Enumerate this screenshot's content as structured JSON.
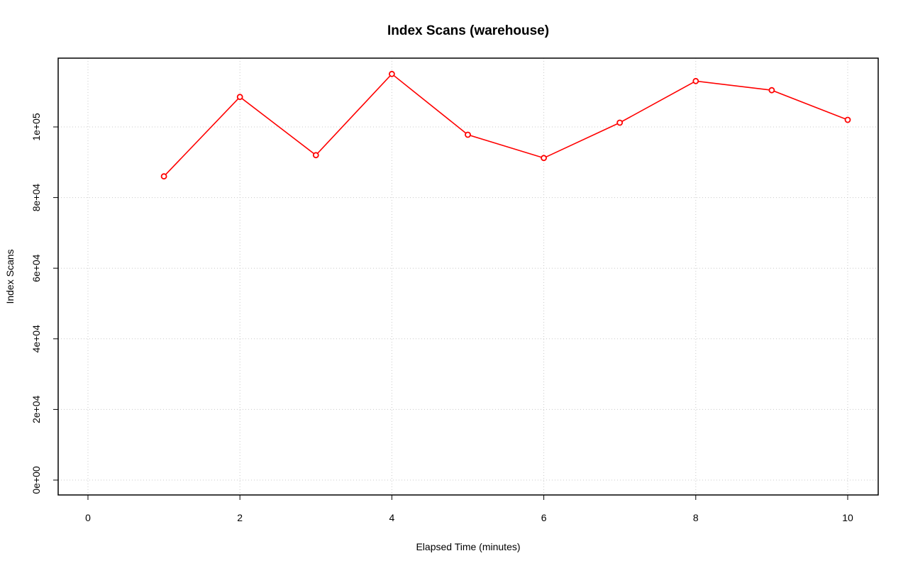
{
  "chart_data": {
    "type": "line",
    "title": "Index Scans (warehouse)",
    "xlabel": "Elapsed Time (minutes)",
    "ylabel": "Index Scans",
    "xlim": [
      0,
      10
    ],
    "ylim": [
      0,
      120000
    ],
    "x_ticks": [
      0,
      2,
      4,
      6,
      8,
      10
    ],
    "x_tick_labels": [
      "0",
      "2",
      "4",
      "6",
      "8",
      "10"
    ],
    "y_ticks": [
      0,
      20000,
      40000,
      60000,
      80000,
      100000
    ],
    "y_tick_labels": [
      "0e+00",
      "2e+04",
      "4e+04",
      "6e+04",
      "8e+04",
      "1e+05"
    ],
    "grid": true,
    "series": [
      {
        "color": "#ff0000",
        "marker": "open-circle",
        "x": [
          1,
          2,
          3,
          4,
          5,
          6,
          7,
          8,
          9,
          10
        ],
        "values": [
          86000,
          108500,
          92000,
          115000,
          97800,
          91200,
          101200,
          113000,
          110400,
          102000
        ]
      }
    ]
  }
}
